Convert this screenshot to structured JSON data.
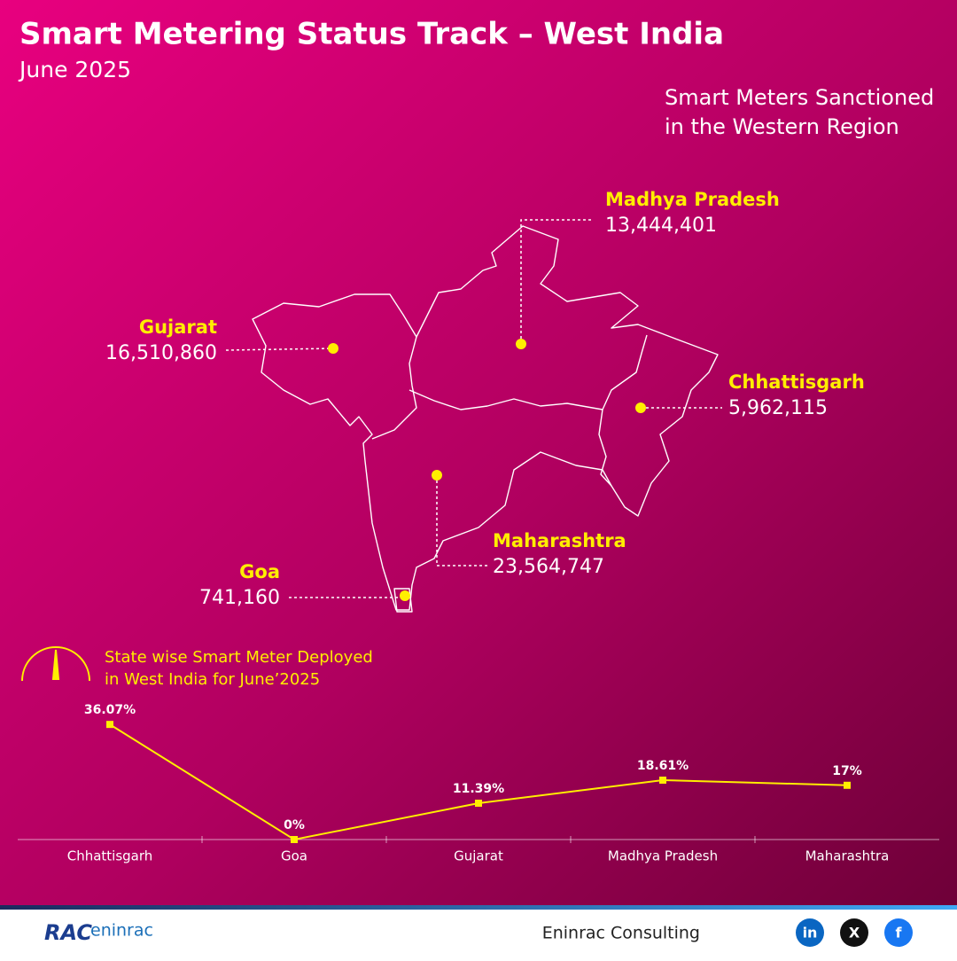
{
  "header": {
    "title": "Smart Metering Status Track – West India",
    "subtitle": "June 2025"
  },
  "map": {
    "title": [
      "Smart Meters Sanctioned",
      "in the Western Region"
    ],
    "states": [
      {
        "name": "Madhya Pradesh",
        "value": "13,444,401"
      },
      {
        "name": "Gujarat",
        "value": "16,510,860"
      },
      {
        "name": "Chhattisgarh",
        "value": "5,962,115"
      },
      {
        "name": "Maharashtra",
        "value": "23,564,747"
      },
      {
        "name": "Goa",
        "value": "741,160"
      }
    ]
  },
  "chart_data": {
    "type": "line",
    "title": [
      "State wise Smart Meter Deployed",
      "in West India for June’2025"
    ],
    "categories": [
      "Chhattisgarh",
      "Goa",
      "Gujarat",
      "Madhya Pradesh",
      "Maharashtra"
    ],
    "values": [
      36.07,
      0,
      11.39,
      18.61,
      17
    ],
    "value_labels": [
      "36.07%",
      "0%",
      "11.39%",
      "18.61%",
      "17%"
    ],
    "color": "#ffee00"
  },
  "footer": {
    "logo": [
      "RAC",
      "eninrac"
    ],
    "company": "Eninrac Consulting",
    "social": [
      "in",
      "X",
      "f"
    ]
  }
}
